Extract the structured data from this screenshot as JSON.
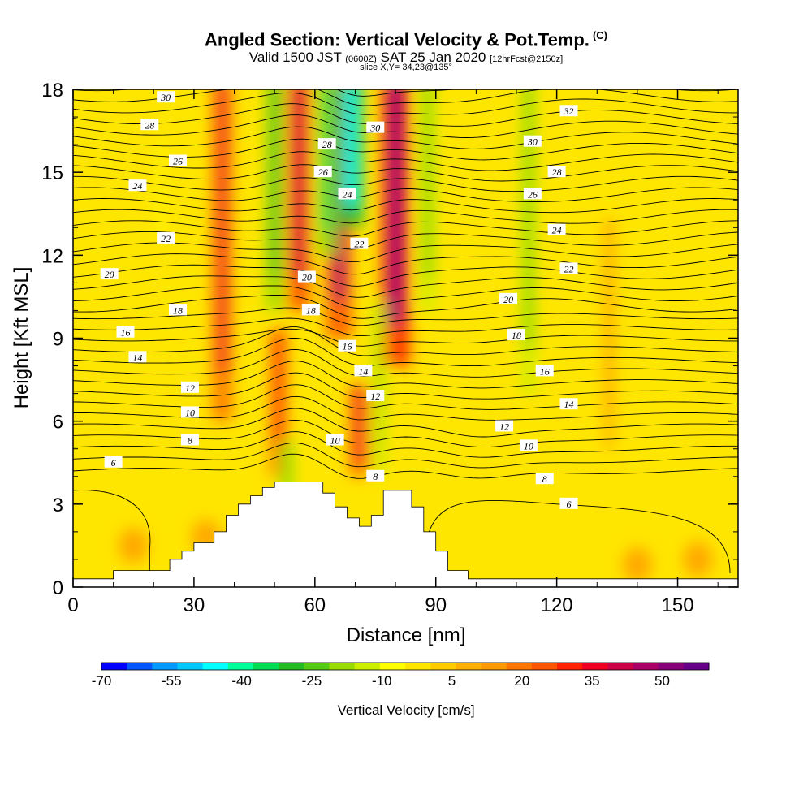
{
  "header": {
    "title": "Angled Section: Vertical Velocity & Pot.Temp.",
    "copyright": "(C)",
    "valid_prefix": "Valid 1500 JST",
    "valid_utc": "(0600Z)",
    "valid_date": "SAT 25 Jan 2020",
    "forecast": "[12hrFcst@2150z]",
    "slice": "slice X,Y= 34,23@135°"
  },
  "chart_data": {
    "type": "heatmap",
    "xlabel": "Distance [nm]",
    "ylabel": "Height [Kft MSL]",
    "xlim": [
      0,
      165
    ],
    "ylim": [
      0,
      18
    ],
    "x_ticks": [
      "0",
      "30",
      "60",
      "90",
      "120",
      "150"
    ],
    "y_ticks": [
      "0",
      "3",
      "6",
      "9",
      "12",
      "15",
      "18"
    ],
    "colorbar": {
      "label": "Vertical Velocity [cm/s]",
      "range": [
        -70,
        60
      ],
      "tick_labels": [
        "-70",
        "-55",
        "-40",
        "-25",
        "-10",
        "5",
        "20",
        "35",
        "50"
      ],
      "tick_values": [
        -70,
        -55,
        -40,
        -25,
        -10,
        5,
        20,
        35,
        50
      ],
      "colors": [
        "#0000ff",
        "#0055ff",
        "#0099ff",
        "#00c8ff",
        "#00ffff",
        "#00ff99",
        "#00dd55",
        "#22bb22",
        "#55cc11",
        "#99dd00",
        "#ccee00",
        "#ffff00",
        "#ffe600",
        "#ffcc00",
        "#ffb000",
        "#ff9900",
        "#ff7700",
        "#ff5500",
        "#ff2200",
        "#ee0022",
        "#cc0044",
        "#aa0066",
        "#880077",
        "#660088"
      ]
    },
    "terrain_profile": [
      [
        0,
        0.3
      ],
      [
        10,
        0.3
      ],
      [
        10,
        0.6
      ],
      [
        24,
        0.6
      ],
      [
        24,
        1.0
      ],
      [
        27,
        1.0
      ],
      [
        27,
        1.3
      ],
      [
        30,
        1.3
      ],
      [
        30,
        1.6
      ],
      [
        35,
        1.6
      ],
      [
        35,
        2.0
      ],
      [
        38,
        2.0
      ],
      [
        38,
        2.6
      ],
      [
        41,
        2.6
      ],
      [
        41,
        3.0
      ],
      [
        44,
        3.0
      ],
      [
        44,
        3.3
      ],
      [
        47,
        3.3
      ],
      [
        47,
        3.6
      ],
      [
        50,
        3.6
      ],
      [
        50,
        3.8
      ],
      [
        62,
        3.8
      ],
      [
        62,
        3.4
      ],
      [
        65,
        3.4
      ],
      [
        65,
        2.9
      ],
      [
        68,
        2.9
      ],
      [
        68,
        2.5
      ],
      [
        71,
        2.5
      ],
      [
        71,
        2.2
      ],
      [
        74,
        2.2
      ],
      [
        74,
        2.6
      ],
      [
        77,
        2.6
      ],
      [
        77,
        3.5
      ],
      [
        84,
        3.5
      ],
      [
        84,
        2.9
      ],
      [
        87,
        2.9
      ],
      [
        87,
        2.0
      ],
      [
        90,
        2.0
      ],
      [
        90,
        1.3
      ],
      [
        93,
        1.3
      ],
      [
        93,
        0.6
      ],
      [
        98,
        0.6
      ],
      [
        98,
        0.3
      ],
      [
        165,
        0.3
      ]
    ],
    "updrafts": [
      {
        "x": 37,
        "z_bottom": 6,
        "z_top": 18,
        "w": 35
      },
      {
        "x": 51,
        "z_bottom": 4,
        "z_top": 9,
        "w": 30
      },
      {
        "x": 56,
        "z_bottom": 10,
        "z_top": 18,
        "w": 40
      },
      {
        "x": 66,
        "z_bottom": 9,
        "z_top": 18,
        "w": 45
      },
      {
        "x": 71,
        "z_bottom": 4,
        "z_top": 7,
        "w": 35
      },
      {
        "x": 80,
        "z_bottom": 8,
        "z_top": 18,
        "w": 50
      },
      {
        "x": 133,
        "z_bottom": 5,
        "z_top": 13,
        "w": 15
      }
    ],
    "downdrafts": [
      {
        "x": 50,
        "z_bottom": 10,
        "z_top": 18,
        "w": -30
      },
      {
        "x": 53,
        "z_bottom": 2.5,
        "z_top": 5,
        "w": -25
      },
      {
        "x": 63,
        "z_bottom": 12,
        "z_top": 18,
        "w": -35
      },
      {
        "x": 69,
        "z_bottom": 13,
        "z_top": 18,
        "w": -45
      },
      {
        "x": 76,
        "z_bottom": 4,
        "z_top": 10,
        "w": -20
      },
      {
        "x": 88,
        "z_bottom": 10,
        "z_top": 18,
        "w": -25
      },
      {
        "x": 113,
        "z_bottom": 7,
        "z_top": 18,
        "w": -25
      },
      {
        "x": 22,
        "z_bottom": 12,
        "z_top": 16,
        "w": -8
      }
    ],
    "theta_labels": [
      {
        "value": "30",
        "x": 23,
        "z": 17.7
      },
      {
        "value": "28",
        "x": 19,
        "z": 16.7
      },
      {
        "value": "26",
        "x": 26,
        "z": 15.4
      },
      {
        "value": "24",
        "x": 16,
        "z": 14.5
      },
      {
        "value": "22",
        "x": 23,
        "z": 12.6
      },
      {
        "value": "20",
        "x": 9,
        "z": 11.3
      },
      {
        "value": "18",
        "x": 26,
        "z": 10.0
      },
      {
        "value": "16",
        "x": 13,
        "z": 9.2
      },
      {
        "value": "14",
        "x": 16,
        "z": 8.3
      },
      {
        "value": "12",
        "x": 29,
        "z": 7.2
      },
      {
        "value": "10",
        "x": 29,
        "z": 6.3
      },
      {
        "value": "8",
        "x": 29,
        "z": 5.3
      },
      {
        "value": "6",
        "x": 10,
        "z": 4.5
      },
      {
        "value": "28",
        "x": 63,
        "z": 16.0
      },
      {
        "value": "30",
        "x": 75,
        "z": 16.6
      },
      {
        "value": "26",
        "x": 62,
        "z": 15.0
      },
      {
        "value": "24",
        "x": 68,
        "z": 14.2
      },
      {
        "value": "22",
        "x": 71,
        "z": 12.4
      },
      {
        "value": "20",
        "x": 58,
        "z": 11.2
      },
      {
        "value": "18",
        "x": 59,
        "z": 10.0
      },
      {
        "value": "16",
        "x": 68,
        "z": 8.7
      },
      {
        "value": "14",
        "x": 72,
        "z": 7.8
      },
      {
        "value": "12",
        "x": 75,
        "z": 6.9
      },
      {
        "value": "10",
        "x": 65,
        "z": 5.3
      },
      {
        "value": "8",
        "x": 75,
        "z": 4.0
      },
      {
        "value": "32",
        "x": 123,
        "z": 17.2
      },
      {
        "value": "30",
        "x": 114,
        "z": 16.1
      },
      {
        "value": "28",
        "x": 120,
        "z": 15.0
      },
      {
        "value": "26",
        "x": 114,
        "z": 14.2
      },
      {
        "value": "24",
        "x": 120,
        "z": 12.9
      },
      {
        "value": "22",
        "x": 123,
        "z": 11.5
      },
      {
        "value": "20",
        "x": 108,
        "z": 10.4
      },
      {
        "value": "18",
        "x": 110,
        "z": 9.1
      },
      {
        "value": "16",
        "x": 117,
        "z": 7.8
      },
      {
        "value": "14",
        "x": 123,
        "z": 6.6
      },
      {
        "value": "12",
        "x": 107,
        "z": 5.8
      },
      {
        "value": "10",
        "x": 113,
        "z": 5.1
      },
      {
        "value": "8",
        "x": 117,
        "z": 3.9
      },
      {
        "value": "6",
        "x": 123,
        "z": 3.0
      }
    ]
  }
}
